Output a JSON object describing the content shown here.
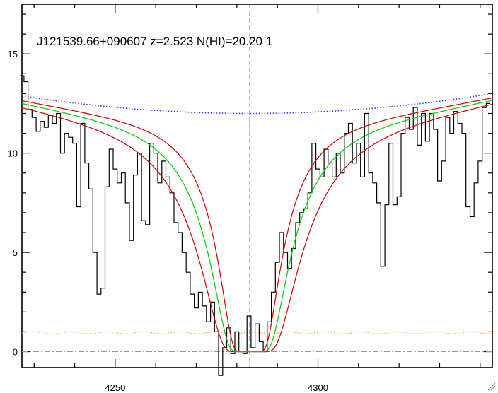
{
  "chart_data": {
    "type": "line",
    "title": "J121539.66+090607 z=2.523 N(HI)=20.20 1",
    "xlabel": "",
    "ylabel": "",
    "xlim": [
      4227,
      4343
    ],
    "ylim": [
      -0.8,
      17.5
    ],
    "x_ticks": [
      4250,
      4300
    ],
    "y_ticks": [
      0,
      5,
      10,
      15
    ],
    "grid": false,
    "legend": "none",
    "center_wavelength": 4283.2,
    "colors": {
      "spectrum": "#000000",
      "best_fit": "#00cc00",
      "fit_bounds": "#cc0000",
      "continuum": "#3333ff",
      "error": "#ff9933",
      "zero_line": "#999999",
      "center_line": "#1a1a99"
    },
    "series": [
      {
        "role": "spectrum",
        "x": [
          4227,
          4228,
          4229,
          4230,
          4231,
          4232,
          4233,
          4234,
          4235,
          4236,
          4237,
          4238,
          4239,
          4240,
          4241,
          4242,
          4243,
          4244,
          4245,
          4246,
          4247,
          4248,
          4249,
          4250,
          4251,
          4252,
          4253,
          4254,
          4255,
          4256,
          4257,
          4258,
          4259,
          4260,
          4261,
          4262,
          4263,
          4264,
          4265,
          4266,
          4267,
          4268,
          4269,
          4270,
          4271,
          4272,
          4273,
          4274,
          4275,
          4276,
          4277,
          4278,
          4279,
          4280,
          4281,
          4282,
          4283,
          4284,
          4285,
          4286,
          4287,
          4288,
          4289,
          4290,
          4291,
          4292,
          4293,
          4294,
          4295,
          4296,
          4297,
          4298,
          4299,
          4300,
          4301,
          4302,
          4303,
          4304,
          4305,
          4306,
          4307,
          4308,
          4309,
          4310,
          4311,
          4312,
          4313,
          4314,
          4315,
          4316,
          4317,
          4318,
          4319,
          4320,
          4321,
          4322,
          4323,
          4324,
          4325,
          4326,
          4327,
          4328,
          4329,
          4330,
          4331,
          4332,
          4333,
          4334,
          4335,
          4336,
          4337,
          4338,
          4339,
          4340,
          4341,
          4342
        ],
        "y": [
          13.9,
          13.6,
          12.2,
          11.8,
          11.1,
          11.6,
          11.3,
          11.9,
          11.5,
          12.0,
          10.0,
          11.0,
          10.8,
          10.5,
          7.3,
          11.5,
          9.5,
          8.2,
          5.0,
          2.9,
          3.2,
          8.3,
          10.2,
          9.2,
          8.5,
          9.0,
          7.5,
          5.6,
          8.9,
          10.0,
          6.6,
          6.4,
          10.5,
          10.0,
          8.5,
          9.6,
          8.8,
          8.0,
          6.5,
          6.0,
          5.0,
          4.0,
          2.9,
          2.2,
          3.0,
          2.3,
          1.5,
          2.5,
          1.0,
          -1.2,
          0.2,
          1.2,
          -0.1,
          1.0,
          0.0,
          -0.1,
          1.8,
          0.2,
          1.4,
          0.5,
          0.0,
          1.5,
          3.0,
          4.5,
          6.0,
          5.0,
          4.2,
          5.2,
          6.5,
          7.0,
          7.2,
          8.0,
          10.5,
          9.2,
          8.8,
          10.2,
          9.5,
          8.8,
          10.0,
          9.0,
          11.0,
          11.5,
          9.5,
          10.5,
          8.8,
          12.0,
          9.0,
          8.5,
          7.5,
          4.3,
          7.4,
          10.5,
          7.4,
          7.8,
          11.0,
          11.8,
          11.2,
          12.3,
          10.4,
          12.0,
          10.6,
          12.0,
          11.2,
          8.6,
          9.6,
          11.8,
          11.0,
          12.1,
          11.5,
          11.0,
          7.3,
          6.8,
          8.5,
          9.6,
          12.3,
          12.5
        ]
      }
    ]
  }
}
